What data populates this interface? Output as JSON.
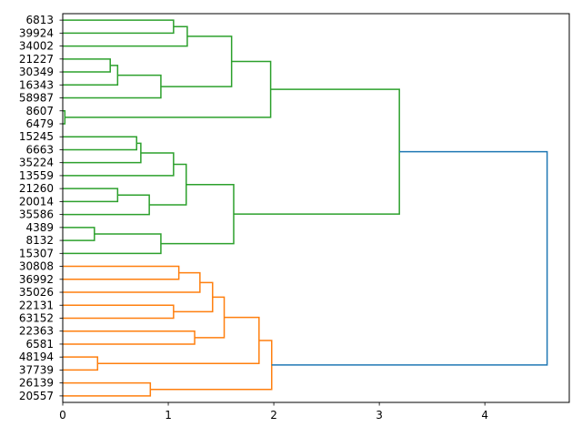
{
  "chart_data": {
    "type": "dendrogram",
    "orientation": "horizontal",
    "title": "",
    "xlabel": "",
    "ylabel": "",
    "xlim": [
      0,
      4.8
    ],
    "x_ticks": [
      0,
      1,
      2,
      3,
      4
    ],
    "x_tick_labels": [
      "0",
      "1",
      "2",
      "3",
      "4"
    ],
    "grid": false,
    "leaf_labels": [
      "6813",
      "39924",
      "34002",
      "21227",
      "30349",
      "16343",
      "58987",
      "8607",
      "6479",
      "15245",
      "6663",
      "35224",
      "13559",
      "21260",
      "20014",
      "35586",
      "4389",
      "8132",
      "15307",
      "30808",
      "36992",
      "35026",
      "22131",
      "63152",
      "22363",
      "6581",
      "48194",
      "37739",
      "26139",
      "20557"
    ],
    "cluster_colors": {
      "C0": "#1f77b4",
      "C1": "#ff7f0e",
      "C2": "#2ca02c"
    },
    "links": [
      {
        "id": "m1",
        "left": "L7",
        "right": "L8",
        "height": 0.02,
        "color": "C2"
      },
      {
        "id": "m2",
        "left": "L16",
        "right": "L17",
        "height": 0.3,
        "color": "C2"
      },
      {
        "id": "m3",
        "left": "L26",
        "right": "L27",
        "height": 0.33,
        "color": "C1"
      },
      {
        "id": "m4",
        "left": "L3",
        "right": "L4",
        "height": 0.45,
        "color": "C2"
      },
      {
        "id": "m5",
        "left": "m4",
        "right": "L5",
        "height": 0.52,
        "color": "C2"
      },
      {
        "id": "m6",
        "left": "L13",
        "right": "L14",
        "height": 0.52,
        "color": "C2"
      },
      {
        "id": "m7",
        "left": "L9",
        "right": "L10",
        "height": 0.7,
        "color": "C2"
      },
      {
        "id": "m8",
        "left": "m7",
        "right": "L11",
        "height": 0.74,
        "color": "C2"
      },
      {
        "id": "m9",
        "left": "m6",
        "right": "L15",
        "height": 0.82,
        "color": "C2"
      },
      {
        "id": "m10",
        "left": "L28",
        "right": "L29",
        "height": 0.83,
        "color": "C1"
      },
      {
        "id": "m11",
        "left": "m2",
        "right": "L18",
        "height": 0.93,
        "color": "C2"
      },
      {
        "id": "m12",
        "left": "m5",
        "right": "L6",
        "height": 0.93,
        "color": "C2"
      },
      {
        "id": "m13",
        "left": "L0",
        "right": "L1",
        "height": 1.05,
        "color": "C2"
      },
      {
        "id": "m14",
        "left": "L22",
        "right": "L23",
        "height": 1.05,
        "color": "C1"
      },
      {
        "id": "m15",
        "left": "m8",
        "right": "L12",
        "height": 1.05,
        "color": "C2"
      },
      {
        "id": "m16",
        "left": "L19",
        "right": "L20",
        "height": 1.1,
        "color": "C1"
      },
      {
        "id": "m17",
        "left": "m15",
        "right": "m9",
        "height": 1.17,
        "color": "C2"
      },
      {
        "id": "m18",
        "left": "m13",
        "right": "L2",
        "height": 1.18,
        "color": "C2"
      },
      {
        "id": "m19",
        "left": "L24",
        "right": "L25",
        "height": 1.25,
        "color": "C1"
      },
      {
        "id": "m20",
        "left": "m16",
        "right": "L21",
        "height": 1.3,
        "color": "C1"
      },
      {
        "id": "m21",
        "left": "m20",
        "right": "m14",
        "height": 1.42,
        "color": "C1"
      },
      {
        "id": "m22",
        "left": "m21",
        "right": "m19",
        "height": 1.53,
        "color": "C1"
      },
      {
        "id": "m23",
        "left": "m18",
        "right": "m12",
        "height": 1.6,
        "color": "C2"
      },
      {
        "id": "m24",
        "left": "m17",
        "right": "m11",
        "height": 1.62,
        "color": "C2"
      },
      {
        "id": "m25",
        "left": "m22",
        "right": "m3",
        "height": 1.86,
        "color": "C1"
      },
      {
        "id": "m26",
        "left": "m23",
        "right": "m1",
        "height": 1.97,
        "color": "C2"
      },
      {
        "id": "m27",
        "left": "m25",
        "right": "m10",
        "height": 1.98,
        "color": "C1"
      },
      {
        "id": "m28",
        "left": "m26",
        "right": "m24",
        "height": 3.19,
        "color": "C2"
      },
      {
        "id": "m29",
        "left": "m28",
        "right": "m27",
        "height": 4.59,
        "color": "C0"
      }
    ]
  }
}
